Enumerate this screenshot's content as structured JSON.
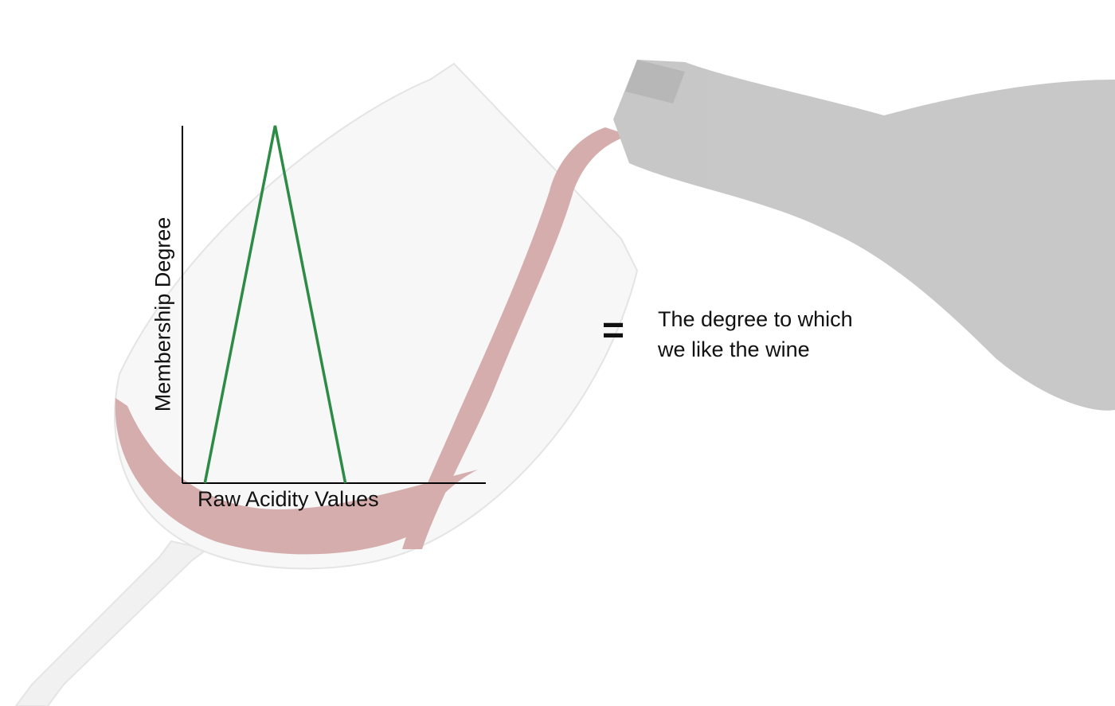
{
  "chart_data": {
    "type": "line",
    "title": "",
    "xlabel": "Raw Acidity Values",
    "ylabel": "Membership Degree",
    "series": [
      {
        "x": [
          0.0,
          0.25,
          0.5
        ],
        "y": [
          0,
          1,
          0
        ]
      }
    ],
    "xlim": [
      -0.08,
      1.0
    ],
    "ylim": [
      0,
      1
    ],
    "grid": false,
    "line_color": "#2e8b45",
    "axis_color": "#000000"
  },
  "equals_sign": "=",
  "caption": {
    "line1": "The degree to which",
    "line2": "we like the wine"
  },
  "background": {
    "image": "wine bottle pouring red wine into glass",
    "wine_color": "#b56b6b",
    "bottle_color": "#9a9a9a"
  }
}
